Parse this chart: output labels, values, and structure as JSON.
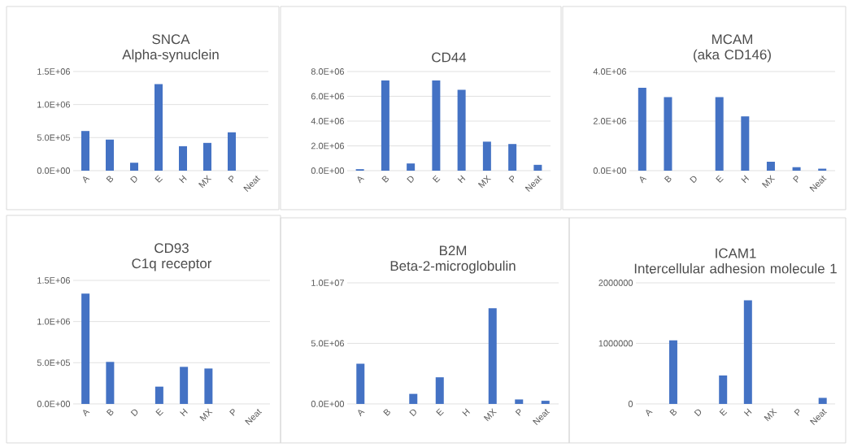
{
  "chart_data": [
    {
      "type": "bar",
      "title": "SNCA",
      "subtitle": "Alpha-synuclein",
      "categories": [
        "A",
        "B",
        "D",
        "E",
        "H",
        "MX",
        "P",
        "Neat"
      ],
      "values": [
        600000,
        470000,
        120000,
        1310000,
        370000,
        420000,
        580000,
        0
      ],
      "color": "#4472c4",
      "ylim": [
        0,
        1500000
      ],
      "yticks": [
        {
          "value": 0,
          "label": "0.0E+00"
        },
        {
          "value": 500000,
          "label": "5.0E+05"
        },
        {
          "value": 1000000,
          "label": "1.0E+06"
        },
        {
          "value": 1500000,
          "label": "1.5E+06"
        }
      ],
      "grid": "y"
    },
    {
      "type": "bar",
      "title": "CD44",
      "categories": [
        "A",
        "B",
        "D",
        "E",
        "H",
        "MX",
        "P",
        "Neat"
      ],
      "values": [
        120000,
        7270000,
        580000,
        7270000,
        6530000,
        2340000,
        2150000,
        470000
      ],
      "color": "#4472c4",
      "ylim": [
        0,
        8000000
      ],
      "yticks": [
        {
          "value": 0,
          "label": "0.0E+00"
        },
        {
          "value": 2000000,
          "label": "2.0E+06"
        },
        {
          "value": 4000000,
          "label": "4.0E+06"
        },
        {
          "value": 6000000,
          "label": "6.0E+06"
        },
        {
          "value": 8000000,
          "label": "8.0E+06"
        }
      ],
      "grid": "y"
    },
    {
      "type": "bar",
      "title": "MCAM",
      "subtitle": "(aka CD146)",
      "categories": [
        "A",
        "B",
        "D",
        "E",
        "H",
        "MX",
        "P",
        "Neat"
      ],
      "values": [
        3340000,
        2970000,
        0,
        2970000,
        2190000,
        360000,
        140000,
        80000
      ],
      "color": "#4472c4",
      "ylim": [
        0,
        4000000
      ],
      "yticks": [
        {
          "value": 0,
          "label": "0.0E+00"
        },
        {
          "value": 2000000,
          "label": "2.0E+06"
        },
        {
          "value": 4000000,
          "label": "4.0E+06"
        }
      ],
      "grid": "y"
    },
    {
      "type": "bar",
      "title": "CD93",
      "subtitle": "C1q receptor",
      "categories": [
        "A",
        "B",
        "D",
        "E",
        "H",
        "MX",
        "P",
        "Neat"
      ],
      "values": [
        1340000,
        510000,
        0,
        210000,
        450000,
        430000,
        0,
        0
      ],
      "color": "#4472c4",
      "ylim": [
        0,
        1500000
      ],
      "yticks": [
        {
          "value": 0,
          "label": "0.0E+00"
        },
        {
          "value": 500000,
          "label": "5.0E+05"
        },
        {
          "value": 1000000,
          "label": "1.0E+06"
        },
        {
          "value": 1500000,
          "label": "1.5E+06"
        }
      ],
      "grid": "y"
    },
    {
      "type": "bar",
      "title": "B2M",
      "subtitle": "Beta-2-microglobulin",
      "categories": [
        "A",
        "B",
        "D",
        "E",
        "H",
        "MX",
        "P",
        "Neat"
      ],
      "values": [
        3320000,
        0,
        830000,
        2200000,
        0,
        7900000,
        370000,
        260000
      ],
      "color": "#4472c4",
      "ylim": [
        0,
        10000000
      ],
      "yticks": [
        {
          "value": 0,
          "label": "0.0E+00"
        },
        {
          "value": 5000000,
          "label": "5.0E+06"
        },
        {
          "value": 10000000,
          "label": "1.0E+07"
        }
      ],
      "grid": "y"
    },
    {
      "type": "bar",
      "title": "ICAM1",
      "subtitle": "Intercellular adhesion molecule 1",
      "categories": [
        "A",
        "B",
        "D",
        "E",
        "H",
        "MX",
        "P",
        "Neat"
      ],
      "values": [
        0,
        1050000,
        0,
        470000,
        1710000,
        0,
        0,
        100000
      ],
      "color": "#4472c4",
      "ylim": [
        0,
        2000000
      ],
      "yticks": [
        0,
        1000000,
        2000000
      ],
      "grid": "y"
    }
  ]
}
